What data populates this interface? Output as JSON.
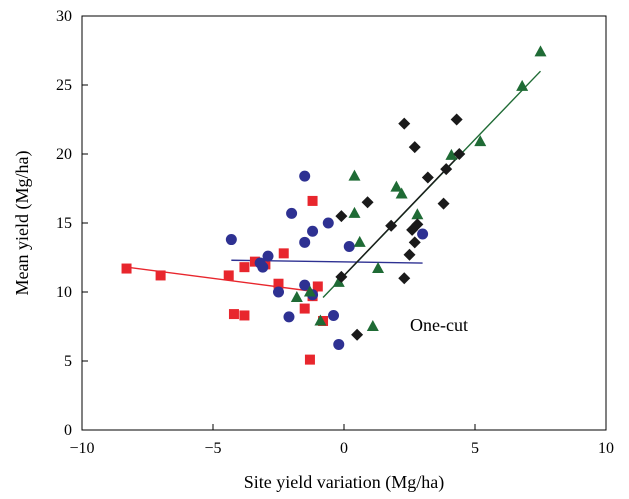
{
  "chart_data": {
    "type": "scatter",
    "xlabel": "Site yield variation (Mg/ha)",
    "ylabel": "Mean yield (Mg/ha)",
    "xlim": [
      -10,
      10
    ],
    "ylim": [
      0,
      30
    ],
    "xticks": [
      -10,
      -5,
      0,
      5,
      10
    ],
    "yticks": [
      0,
      5,
      10,
      15,
      20,
      25,
      30
    ],
    "xtick_labels": [
      "−10",
      "−5",
      "0",
      "5",
      "10"
    ],
    "ytick_labels": [
      "0",
      "5",
      "10",
      "15",
      "20",
      "25",
      "30"
    ],
    "grid": false,
    "annotation": "One-cut",
    "series": [
      {
        "marker": "square",
        "color": "#e8262d",
        "points": [
          [
            -8.3,
            11.7
          ],
          [
            -7.0,
            11.2
          ],
          [
            -4.4,
            11.2
          ],
          [
            -4.2,
            8.4
          ],
          [
            -3.8,
            11.8
          ],
          [
            -3.8,
            8.3
          ],
          [
            -3.4,
            12.2
          ],
          [
            -3.0,
            12.0
          ],
          [
            -2.5,
            10.6
          ],
          [
            -2.3,
            12.8
          ],
          [
            -1.5,
            8.8
          ],
          [
            -1.2,
            9.7
          ],
          [
            -1.2,
            16.6
          ],
          [
            -1.0,
            10.4
          ],
          [
            -0.8,
            7.9
          ],
          [
            -1.3,
            5.1
          ]
        ],
        "trend": [
          [
            -8.3,
            11.8
          ],
          [
            -1.0,
            10.0
          ]
        ],
        "trend_color": "#e8262d"
      },
      {
        "marker": "circle",
        "color": "#2e3192",
        "points": [
          [
            -4.3,
            13.8
          ],
          [
            -2.0,
            15.7
          ],
          [
            -1.5,
            18.4
          ],
          [
            -1.5,
            13.6
          ],
          [
            -1.2,
            14.4
          ],
          [
            -0.6,
            15.0
          ],
          [
            -3.2,
            12.1
          ],
          [
            -2.9,
            12.6
          ],
          [
            -3.1,
            11.8
          ],
          [
            -2.5,
            10.0
          ],
          [
            -1.5,
            10.5
          ],
          [
            -2.1,
            8.2
          ],
          [
            -1.2,
            9.8
          ],
          [
            -0.4,
            8.3
          ],
          [
            -0.2,
            6.2
          ],
          [
            0.2,
            13.3
          ],
          [
            3.0,
            14.2
          ]
        ],
        "trend": [
          [
            -4.3,
            12.3
          ],
          [
            3.0,
            12.1
          ]
        ],
        "trend_color": "#2e3192"
      },
      {
        "marker": "triangle",
        "color": "#1f6b35",
        "points": [
          [
            -1.8,
            9.6
          ],
          [
            -1.3,
            10.0
          ],
          [
            -0.9,
            7.9
          ],
          [
            -0.2,
            10.7
          ],
          [
            0.4,
            18.4
          ],
          [
            0.4,
            15.7
          ],
          [
            0.6,
            13.6
          ],
          [
            1.1,
            7.5
          ],
          [
            1.3,
            11.7
          ],
          [
            2.0,
            17.6
          ],
          [
            2.2,
            17.1
          ],
          [
            2.8,
            15.6
          ],
          [
            4.1,
            19.9
          ],
          [
            5.2,
            20.9
          ],
          [
            6.8,
            24.9
          ],
          [
            7.5,
            27.4
          ]
        ],
        "trend": [
          [
            -0.8,
            9.6
          ],
          [
            7.5,
            26.0
          ]
        ],
        "trend_color": "#1f6b35"
      },
      {
        "marker": "diamond",
        "color": "#1a1a1a",
        "points": [
          [
            -0.1,
            15.5
          ],
          [
            -0.1,
            11.1
          ],
          [
            0.5,
            6.9
          ],
          [
            0.9,
            16.5
          ],
          [
            1.8,
            14.8
          ],
          [
            2.3,
            22.2
          ],
          [
            2.7,
            20.5
          ],
          [
            2.3,
            11.0
          ],
          [
            2.5,
            12.7
          ],
          [
            2.6,
            14.5
          ],
          [
            2.7,
            13.6
          ],
          [
            2.8,
            14.9
          ],
          [
            3.2,
            18.3
          ],
          [
            3.8,
            16.4
          ],
          [
            3.9,
            18.9
          ],
          [
            4.3,
            22.5
          ],
          [
            4.4,
            20.0
          ]
        ],
        "trend": [
          [
            -0.1,
            11.0
          ],
          [
            4.5,
            20.1
          ]
        ],
        "trend_color": "#1a1a1a"
      }
    ]
  }
}
